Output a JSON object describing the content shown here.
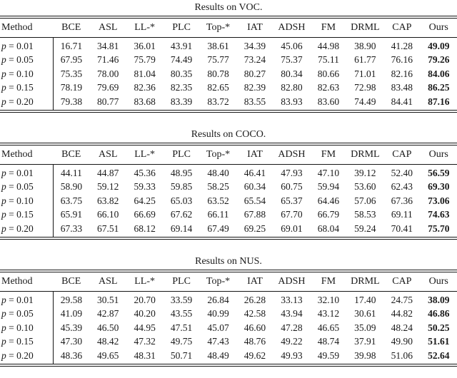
{
  "tables": [
    {
      "title": "Results on VOC.",
      "columns": [
        "Method",
        "BCE",
        "ASL",
        "LL-*",
        "PLC",
        "Top-*",
        "IAT",
        "ADSH",
        "FM",
        "DRML",
        "CAP",
        "Ours"
      ],
      "rows": [
        {
          "method": "p = 0.01",
          "values": [
            "16.71",
            "34.81",
            "36.01",
            "43.91",
            "38.61",
            "34.39",
            "45.06",
            "44.98",
            "38.90",
            "41.28",
            "49.09"
          ]
        },
        {
          "method": "p = 0.05",
          "values": [
            "67.95",
            "71.46",
            "75.79",
            "74.49",
            "75.77",
            "73.24",
            "75.37",
            "75.11",
            "61.77",
            "76.16",
            "79.26"
          ]
        },
        {
          "method": "p = 0.10",
          "values": [
            "75.35",
            "78.00",
            "81.04",
            "80.35",
            "80.78",
            "80.27",
            "80.34",
            "80.66",
            "71.01",
            "82.16",
            "84.06"
          ]
        },
        {
          "method": "p = 0.15",
          "values": [
            "78.19",
            "79.69",
            "82.36",
            "82.35",
            "82.65",
            "82.39",
            "82.80",
            "82.63",
            "72.98",
            "83.48",
            "86.25"
          ]
        },
        {
          "method": "p = 0.20",
          "values": [
            "79.38",
            "80.77",
            "83.68",
            "83.39",
            "83.72",
            "83.55",
            "83.93",
            "83.60",
            "74.49",
            "84.41",
            "87.16"
          ]
        }
      ]
    },
    {
      "title": "Results on COCO.",
      "columns": [
        "Method",
        "BCE",
        "ASL",
        "LL-*",
        "PLC",
        "Top-*",
        "IAT",
        "ADSH",
        "FM",
        "DRML",
        "CAP",
        "Ours"
      ],
      "rows": [
        {
          "method": "p = 0.01",
          "values": [
            "44.11",
            "44.87",
            "45.36",
            "48.95",
            "48.40",
            "46.41",
            "47.93",
            "47.10",
            "39.12",
            "52.40",
            "56.59"
          ]
        },
        {
          "method": "p = 0.05",
          "values": [
            "58.90",
            "59.12",
            "59.33",
            "59.85",
            "58.25",
            "60.34",
            "60.75",
            "59.94",
            "53.60",
            "62.43",
            "69.30"
          ]
        },
        {
          "method": "p = 0.10",
          "values": [
            "63.75",
            "63.82",
            "64.25",
            "65.03",
            "63.52",
            "65.54",
            "65.37",
            "64.46",
            "57.06",
            "67.36",
            "73.06"
          ]
        },
        {
          "method": "p = 0.15",
          "values": [
            "65.91",
            "66.10",
            "66.69",
            "67.62",
            "66.11",
            "67.88",
            "67.70",
            "66.79",
            "58.53",
            "69.11",
            "74.63"
          ]
        },
        {
          "method": "p = 0.20",
          "values": [
            "67.33",
            "67.51",
            "68.12",
            "69.14",
            "67.49",
            "69.25",
            "69.01",
            "68.04",
            "59.24",
            "70.41",
            "75.70"
          ]
        }
      ]
    },
    {
      "title": "Results on NUS.",
      "columns": [
        "Method",
        "BCE",
        "ASL",
        "LL-*",
        "PLC",
        "Top-*",
        "IAT",
        "ADSH",
        "FM",
        "DRML",
        "CAP",
        "Ours"
      ],
      "rows": [
        {
          "method": "p = 0.01",
          "values": [
            "29.58",
            "30.51",
            "20.70",
            "33.59",
            "26.84",
            "26.28",
            "33.13",
            "32.10",
            "17.40",
            "24.75",
            "38.09"
          ]
        },
        {
          "method": "p = 0.05",
          "values": [
            "41.09",
            "42.87",
            "40.20",
            "43.55",
            "40.99",
            "42.58",
            "43.94",
            "43.12",
            "30.61",
            "44.82",
            "46.86"
          ]
        },
        {
          "method": "p = 0.10",
          "values": [
            "45.39",
            "46.50",
            "44.95",
            "47.51",
            "45.07",
            "46.60",
            "47.28",
            "46.65",
            "35.09",
            "48.24",
            "50.25"
          ]
        },
        {
          "method": "p = 0.15",
          "values": [
            "47.30",
            "48.42",
            "47.32",
            "49.75",
            "47.43",
            "48.76",
            "49.22",
            "48.74",
            "37.91",
            "49.90",
            "51.61"
          ]
        },
        {
          "method": "p = 0.20",
          "values": [
            "48.36",
            "49.65",
            "48.31",
            "50.71",
            "48.49",
            "49.62",
            "49.93",
            "49.59",
            "39.98",
            "51.06",
            "52.64"
          ]
        }
      ]
    }
  ]
}
